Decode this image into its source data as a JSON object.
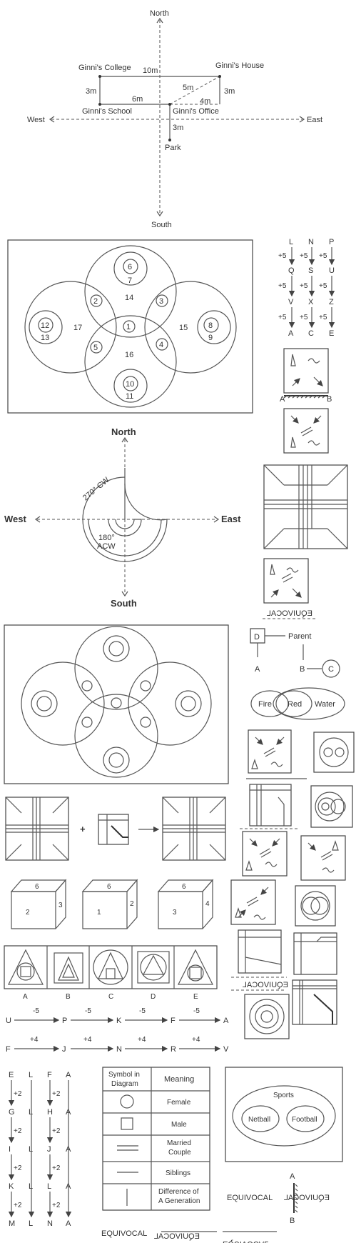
{
  "map": {
    "north": "North",
    "south": "South",
    "east": "East",
    "west": "West",
    "college": "Ginni's College",
    "house": "Ginni's House",
    "school": "Ginni's School",
    "office": "Ginni's Office",
    "park": "Park",
    "d_10m": "10m",
    "d_3m_left": "3m",
    "d_6m": "6m",
    "d_5m": "5m",
    "d_4m": "4m",
    "d_3m_right": "3m",
    "d_3m_park": "3m"
  },
  "venn": {
    "n6": "6",
    "n7": "7",
    "n14": "14",
    "n2": "2",
    "n3": "3",
    "n12": "12",
    "n13": "13",
    "n17": "17",
    "n1": "1",
    "n15": "15",
    "n8": "8",
    "n9": "9",
    "n5": "5",
    "n4": "4",
    "n16": "16",
    "n10": "10",
    "n11": "11"
  },
  "letters_col": {
    "c1": [
      "L",
      "Q",
      "V",
      "A"
    ],
    "c2": [
      "N",
      "S",
      "X",
      "C"
    ],
    "c3": [
      "P",
      "U",
      "Z",
      "E"
    ],
    "step": "+5"
  },
  "mirror": {
    "a": "A",
    "b": "B",
    "word": "EQUIVOCAL"
  },
  "compass": {
    "north": "North",
    "south": "South",
    "east": "East",
    "west": "West",
    "cw": "270° CW",
    "acw1": "180°",
    "acw2": "ACW"
  },
  "family": {
    "d": "D",
    "parent": "Parent",
    "a": "A",
    "b": "B",
    "c": "C"
  },
  "fire": {
    "fire": "Fire",
    "red": "Red",
    "water": "Water"
  },
  "plus": "+",
  "dice": {
    "d1": [
      "6",
      "3",
      "2"
    ],
    "d2": [
      "6",
      "2",
      "1"
    ],
    "d3": [
      "6",
      "4",
      "3"
    ]
  },
  "options": [
    "A",
    "B",
    "C",
    "D",
    "E"
  ],
  "series1": {
    "items": [
      "U",
      "P",
      "K",
      "F",
      "A"
    ],
    "step": "-5"
  },
  "series2": {
    "items": [
      "F",
      "J",
      "N",
      "R",
      "V"
    ],
    "step": "+4"
  },
  "grid": {
    "cols": [
      [
        "E",
        "G",
        "I",
        "K",
        "M"
      ],
      [
        "L",
        "L",
        "L",
        "L",
        "L"
      ],
      [
        "F",
        "H",
        "J",
        "L",
        "N"
      ],
      [
        "A",
        "A",
        "A",
        "A",
        "A"
      ]
    ],
    "step": "+2"
  },
  "table": {
    "h1a": "Symbol in",
    "h1b": "Diagram",
    "h2": "Meaning",
    "rows": [
      "Female",
      "Male",
      "Married",
      "Couple",
      "Siblings",
      "Difference of",
      "A Generation"
    ]
  },
  "sports": {
    "title": "Sports",
    "a": "Netball",
    "b": "Football"
  },
  "equivocal": {
    "word": "EQUIVOCAL",
    "a": "A",
    "b": "B"
  }
}
